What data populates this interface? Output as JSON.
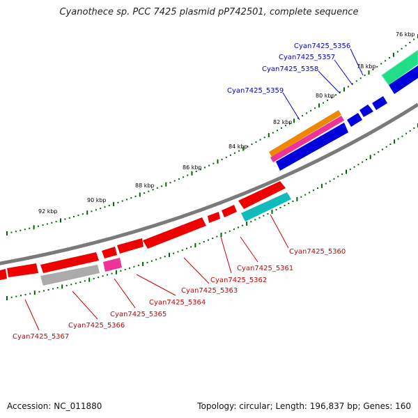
{
  "header": {
    "title": "Cyanothece sp. PCC 7425 plasmid pP742501, complete sequence"
  },
  "footer": {
    "accession": "Accession: NC_011880",
    "summary": "Topology: circular; Length: 196,837 bp; Genes: 160"
  },
  "colors": {
    "backbone": "#808080",
    "tick": "#006400",
    "label_text": "#000000",
    "forward_gene": "#0000dd",
    "reverse_gene": "#ee0000",
    "forward_label": "#0000cc",
    "reverse_label": "#cc0000",
    "green_gene": "#22dd88",
    "cyan_gene": "#11bbbb",
    "orange_gene": "#ee8800",
    "pink_gene": "#ee3399",
    "gray_gene": "#aaaaaa"
  },
  "kbp_labels": [
    "76 kbp",
    "78 kbp",
    "80 kbp",
    "82 kbp",
    "84 kbp",
    "86 kbp",
    "88 kbp",
    "90 kbp",
    "92 kbp"
  ],
  "forward_labels": [
    "Cyan7425_5356",
    "Cyan7425_5357",
    "Cyan7425_5358",
    "Cyan7425_5359"
  ],
  "reverse_labels": [
    "Cyan7425_5360",
    "Cyan7425_5361",
    "Cyan7425_5362",
    "Cyan7425_5363",
    "Cyan7425_5364",
    "Cyan7425_5365",
    "Cyan7425_5366",
    "Cyan7425_5367"
  ]
}
